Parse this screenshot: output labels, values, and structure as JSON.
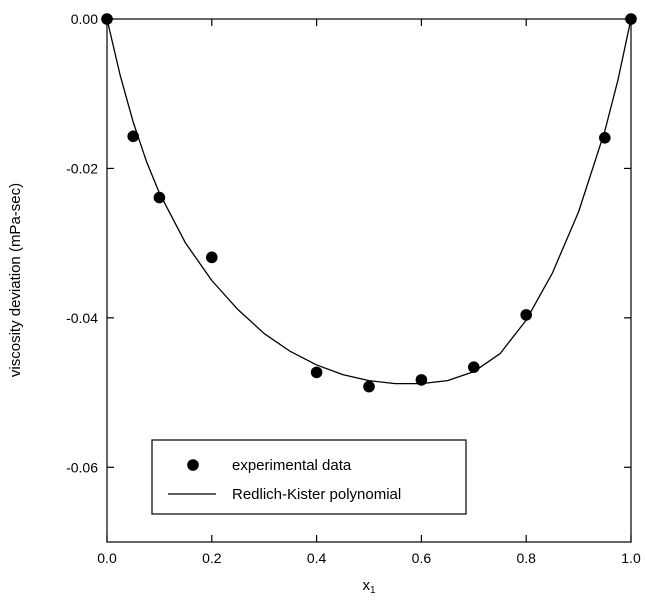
{
  "chart_data": {
    "type": "scatter",
    "title": "",
    "xlabel": "x",
    "xlabel_subscript": "1",
    "ylabel": "viscosity deviation (mPa-sec)",
    "xlim": [
      0.0,
      1.0
    ],
    "ylim": [
      -0.07,
      0.0
    ],
    "x_ticks": [
      0.0,
      0.2,
      0.4,
      0.6,
      0.8,
      1.0
    ],
    "x_tick_labels": [
      "0.0",
      "0.2",
      "0.4",
      "0.6",
      "0.8",
      "1.0"
    ],
    "y_ticks": [
      0.0,
      -0.02,
      -0.04,
      -0.06
    ],
    "y_tick_labels": [
      "0.00",
      "-0.02",
      "-0.04",
      "-0.06"
    ],
    "grid": false,
    "legend_position": "bottom-left",
    "series": [
      {
        "name": "experimental data",
        "kind": "points",
        "color": "#000000",
        "x": [
          0.0,
          0.05,
          0.1,
          0.2,
          0.4,
          0.5,
          0.6,
          0.7,
          0.8,
          0.95,
          1.0
        ],
        "y": [
          0.0,
          -0.0157,
          -0.0239,
          -0.0319,
          -0.0473,
          -0.0492,
          -0.0483,
          -0.0466,
          -0.0396,
          -0.0159,
          0.0
        ]
      },
      {
        "name": "Redlich-Kister polynomial",
        "kind": "line",
        "color": "#000000",
        "x": [
          0.0,
          0.025,
          0.05,
          0.075,
          0.1,
          0.15,
          0.2,
          0.25,
          0.3,
          0.35,
          0.4,
          0.45,
          0.5,
          0.55,
          0.6,
          0.65,
          0.7,
          0.75,
          0.8,
          0.85,
          0.9,
          0.95,
          0.975,
          1.0
        ],
        "y": [
          0.0,
          -0.0075,
          -0.0138,
          -0.019,
          -0.0233,
          -0.03,
          -0.035,
          -0.0389,
          -0.0421,
          -0.0445,
          -0.0463,
          -0.0476,
          -0.0484,
          -0.0488,
          -0.0488,
          -0.0484,
          -0.0472,
          -0.0448,
          -0.0403,
          -0.034,
          -0.0258,
          -0.015,
          -0.0082,
          0.0
        ]
      }
    ]
  }
}
